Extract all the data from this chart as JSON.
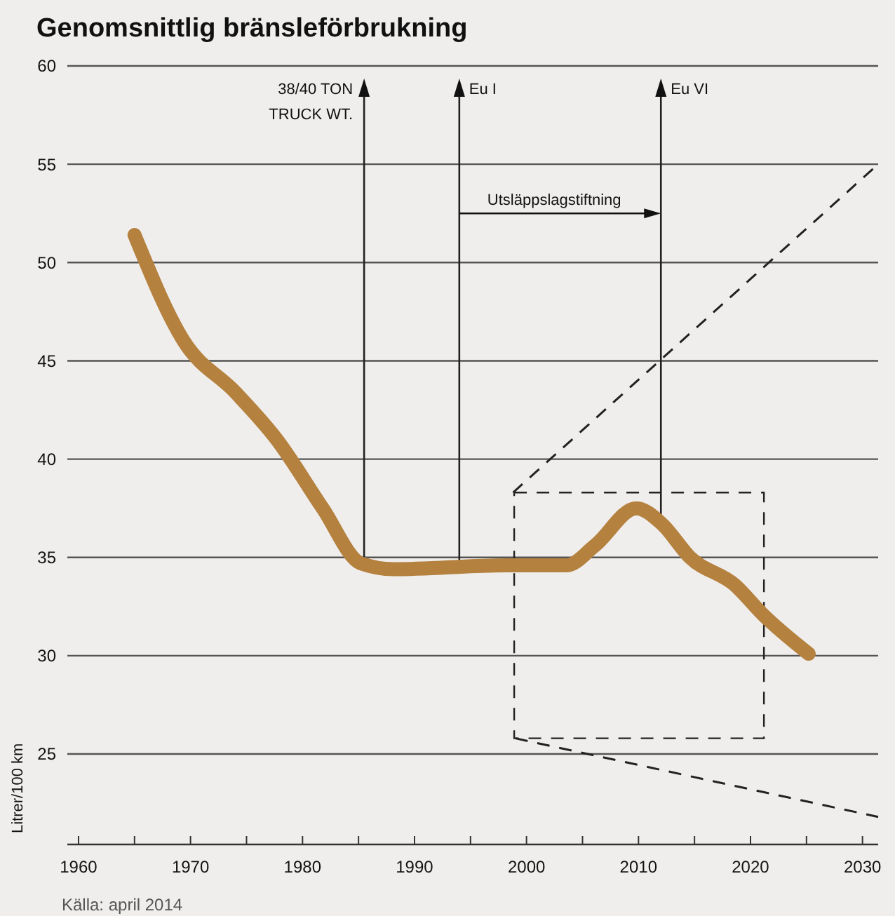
{
  "chart_data": {
    "type": "line",
    "title": "Genomsnittlig bränsleförbrukning",
    "ylabel": "Litrer/100 km",
    "annotations": [
      "Utsläppslagstiftning",
      "Källa: april 2014"
    ],
    "x": [
      1965,
      1969.4,
      1974,
      1977.7,
      1981.8,
      1985.2,
      1988.1,
      1998.2,
      2003.6,
      2006.1,
      2009.8,
      2012.1,
      2014.6,
      2018.6,
      2021.1,
      2025.2
    ],
    "series": [
      {
        "color": "#b5813f",
        "values": [
          51.4,
          46,
          43.4,
          41,
          37.5,
          34.7,
          34.4,
          34.6,
          34.6,
          35.6,
          37.5,
          36.7,
          35,
          33.6,
          32.1,
          30.1
        ]
      },
      {
        "color": "#222222",
        "line_style": "dashed",
        "x": [
          1998.8,
          2031.2
        ],
        "values": [
          38.3,
          54.9
        ]
      },
      {
        "color": "#222222",
        "line_style": "dashed",
        "x": [
          1999,
          2031.4
        ],
        "values": [
          25.8,
          21.8
        ]
      }
    ],
    "xlim": [
      1959,
      2031.4
    ],
    "ylim": [
      20.4,
      60
    ],
    "xticks": [
      1960,
      {
        "value": 1965,
        "label": null
      },
      1970,
      {
        "value": 1975,
        "label": null
      },
      1980,
      {
        "value": 1985,
        "label": null
      },
      1990,
      {
        "value": 1995,
        "label": null
      },
      2000,
      {
        "value": 2005,
        "label": null
      },
      2010,
      {
        "value": 2015,
        "label": null
      },
      2020,
      {
        "value": 2025,
        "label": null
      },
      2030
    ],
    "yticks": [
      25,
      30,
      35,
      40,
      45,
      50,
      55,
      60
    ],
    "grid": "y",
    "ref_lines": [
      {
        "axis": "x",
        "value": 1985.5,
        "label": "38/40 TON\nTRUCK WT."
      },
      {
        "axis": "x",
        "value": 1994,
        "label": "Eu I"
      },
      {
        "axis": "x",
        "value": 2012,
        "label": "Eu VI"
      }
    ]
  }
}
